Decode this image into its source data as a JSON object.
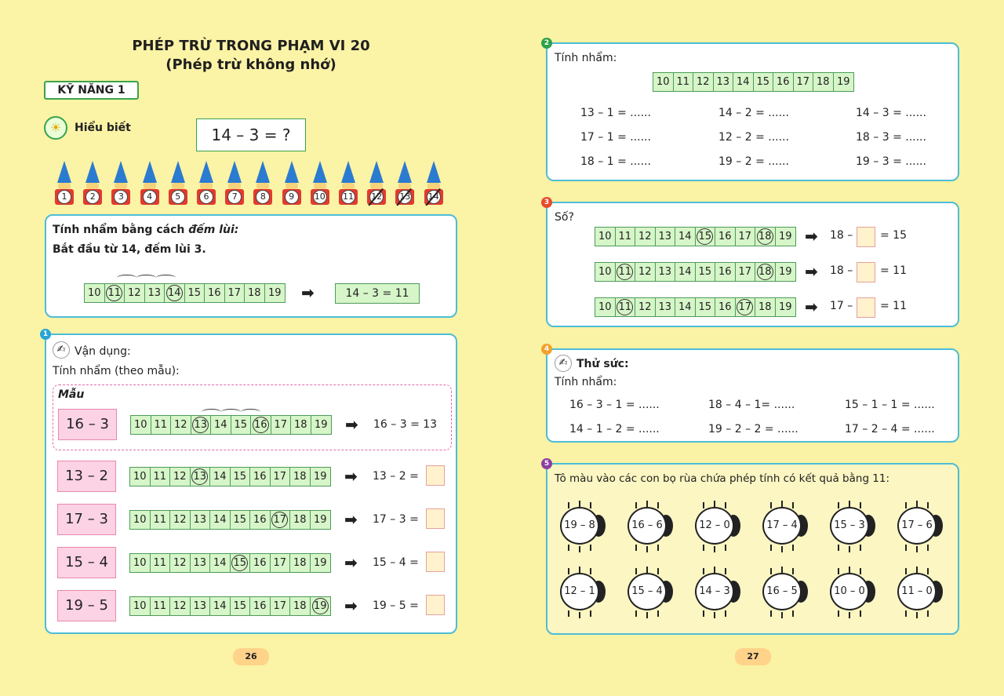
{
  "left": {
    "title": "PHÉP TRỪ TRONG PHẠM VI 20",
    "subtitle": "(Phép trừ không nhớ)",
    "skill_label": "KỸ NĂNG 1",
    "understanding_label": "Hiểu biết",
    "problem": "14 – 3 = ?",
    "gnomes": [
      "1",
      "2",
      "3",
      "4",
      "5",
      "6",
      "7",
      "8",
      "9",
      "10",
      "11",
      "12",
      "13",
      "14"
    ],
    "counting": {
      "line1": "Tính nhẩm bằng cách",
      "line1_italic": "đếm lùi:",
      "line2": "Bắt đầu từ 14, đếm lùi 3.",
      "numbers": [
        "10",
        "11",
        "12",
        "13",
        "14",
        "15",
        "16",
        "17",
        "18",
        "19"
      ],
      "result": "14 – 3 = 11"
    },
    "apply": {
      "badge": "1",
      "title": "Vận dụng:",
      "instruction": "Tính nhẩm (theo mẫu):",
      "example_label": "Mẫu",
      "example_expr": "16 – 3",
      "example_result": "16 – 3 = 13",
      "rows": [
        {
          "expr": "13 – 2",
          "result": "13 – 2 ="
        },
        {
          "expr": "17 – 3",
          "result": "17 – 3 ="
        },
        {
          "expr": "15 – 4",
          "result": "15 – 4 ="
        },
        {
          "expr": "19 – 5",
          "result": "19 – 5 ="
        }
      ]
    },
    "page_number": "26"
  },
  "right": {
    "ex2": {
      "badge": "2",
      "title": "Tính nhẩm:",
      "numbers": [
        "10",
        "11",
        "12",
        "13",
        "14",
        "15",
        "16",
        "17",
        "18",
        "19"
      ],
      "items": [
        [
          "13 – 1 = ......",
          "14 – 2 = ......",
          "14 – 3 = ......"
        ],
        [
          "17 – 1 = ......",
          "12 – 2 = ......",
          "18 – 3 = ......"
        ],
        [
          "18 – 1 = ......",
          "19 – 2 = ......",
          "19 – 3 = ......"
        ]
      ]
    },
    "ex3": {
      "badge": "3",
      "title": "Số?",
      "rows": [
        {
          "left": "18 –",
          "right": "= 15"
        },
        {
          "left": "18 –",
          "right": "= 11"
        },
        {
          "left": "17 –",
          "right": "= 11"
        }
      ]
    },
    "ex4": {
      "badge": "4",
      "title": "Thử sức:",
      "subtitle": "Tính nhẩm:",
      "items": [
        [
          "16 – 3 – 1 = ......",
          "18 – 4 – 1= ......",
          "15 – 1 – 1 = ......"
        ],
        [
          "14 – 1 – 2 = ......",
          "19 – 2 – 2 = ......",
          "17 – 2 – 4 = ......"
        ]
      ]
    },
    "ex5": {
      "badge": "5",
      "title": "Tô màu vào các con bọ rùa chứa phép tính có kết quả bằng 11:",
      "bugs": [
        [
          "19 – 8",
          "16 – 6",
          "12 – 0",
          "17 – 4",
          "15 – 3",
          "17 – 6"
        ],
        [
          "12 – 1",
          "15 – 4",
          "14 – 3",
          "16 – 5",
          "10 – 0",
          "11 – 0"
        ]
      ]
    },
    "page_number": "27"
  },
  "colors": {
    "accent": "#4dbdd6",
    "green": "#3aa34a",
    "pink": "#fcd3e4",
    "yellow": "#fbf3a6"
  }
}
